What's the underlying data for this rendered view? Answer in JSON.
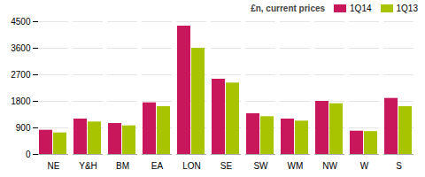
{
  "chart_data": {
    "type": "bar",
    "categories": [
      "NE",
      "Y&H",
      "BM",
      "EA",
      "LON",
      "SE",
      "SW",
      "WM",
      "NW",
      "W",
      "S"
    ],
    "series": [
      {
        "name": "1Q14",
        "color": "#c8175a",
        "values": [
          820,
          1200,
          1050,
          1750,
          4350,
          2550,
          1380,
          1200,
          1800,
          790,
          1900
        ]
      },
      {
        "name": "1Q13",
        "color": "#a8c400",
        "values": [
          730,
          1100,
          970,
          1620,
          3600,
          2420,
          1280,
          1130,
          1720,
          775,
          1620
        ]
      }
    ],
    "legend_title": "£n, current prices",
    "ylim": [
      0,
      4500
    ],
    "yticks": [
      0,
      900,
      1800,
      2700,
      3600,
      4500
    ],
    "grid": true,
    "legend": "upper right"
  }
}
